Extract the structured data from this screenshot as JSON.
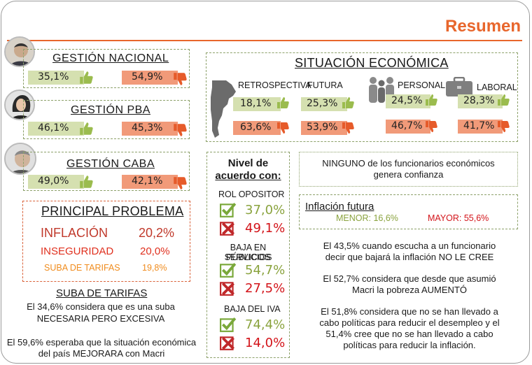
{
  "header": {
    "title": "Resumen"
  },
  "gestion": [
    {
      "label": "GESTIÓN NACIONAL",
      "approve": "35,1%",
      "disapprove": "54,9%"
    },
    {
      "label": "GESTIÓN PBA",
      "approve": "46,1%",
      "disapprove": "45,3%"
    },
    {
      "label": "GESTIÓN CABA",
      "approve": "49,0%",
      "disapprove": "42,1%"
    }
  ],
  "situacion": {
    "title": "SITUACIÓN ECONÓMICA",
    "items": [
      {
        "label": "RETROSPECTIVA",
        "good": "18,1%",
        "bad": "63,6%"
      },
      {
        "label": "FUTURA",
        "good": "25,3%",
        "bad": "53,9%"
      },
      {
        "label": "PERSONAL",
        "good": "24,5%",
        "bad": "46,7%"
      },
      {
        "label": "LABORAL",
        "good": "28,3%",
        "bad": "41,7%"
      }
    ]
  },
  "problema": {
    "title": "PRINCIPAL PROBLEMA",
    "items": [
      {
        "label": "INFLACIÓN",
        "value": "20,2%",
        "color": "#c0392b"
      },
      {
        "label": "INSEGURIDAD",
        "value": "20,0%",
        "color": "#e0301e"
      },
      {
        "label": "SUBA DE TARIFAS",
        "value": "19,8%",
        "color": "#f08c1e"
      }
    ]
  },
  "tarifas": {
    "title": "SUBA DE TARIFAS",
    "line1": "El 34,6% considera que es una suba",
    "line2": "NECESARIA PERO EXCESIVA",
    "line3": "El 59,6% esperaba que la situación económica",
    "line4": "del país MEJORARA con Macri"
  },
  "acuerdo": {
    "title1": "Nivel de",
    "title2": "acuerdo con:",
    "items": [
      {
        "label1": "ROL OPOSITOR",
        "label2": "",
        "yes": "37,0%",
        "no": "49,1%"
      },
      {
        "label1": "BAJA EN SERVICIOS",
        "label2": "PÚBLICOS",
        "yes": "54,7%",
        "no": "27,5%"
      },
      {
        "label1": "BAJA DEL IVA",
        "label2": "",
        "yes": "74,4%",
        "no": "14,0%"
      }
    ]
  },
  "confianza": {
    "line1": "NINGUNO de los funcionarios económicos",
    "line2": "genera confianza"
  },
  "inflacion": {
    "title": "Inflación futura",
    "menor": "MENOR: 16,6%",
    "mayor": "MAYOR: 55,6%"
  },
  "notes": {
    "n1a": "El 43,5% cuando escucha a un funcionario",
    "n1b": "decir que bajará la inflación NO LE CREE",
    "n2a": "El 52,7% considera que desde que asumió",
    "n2b": "Macri la pobreza AUMENTÓ",
    "n3a": "El 51,8% considera que no se han llevado a",
    "n3b": "cabo políticas para reducir el desempleo y el",
    "n3c": "51,4% cree que no se han llevado a cabo",
    "n3d": "políticas para reducir la inflación."
  },
  "colors": {
    "accent": "#e8662c",
    "green_pill": "#d5e0b0",
    "red_pill": "#f19a79",
    "check": "#7aa83a",
    "cross": "#c0282a",
    "border": "#8da16a"
  }
}
